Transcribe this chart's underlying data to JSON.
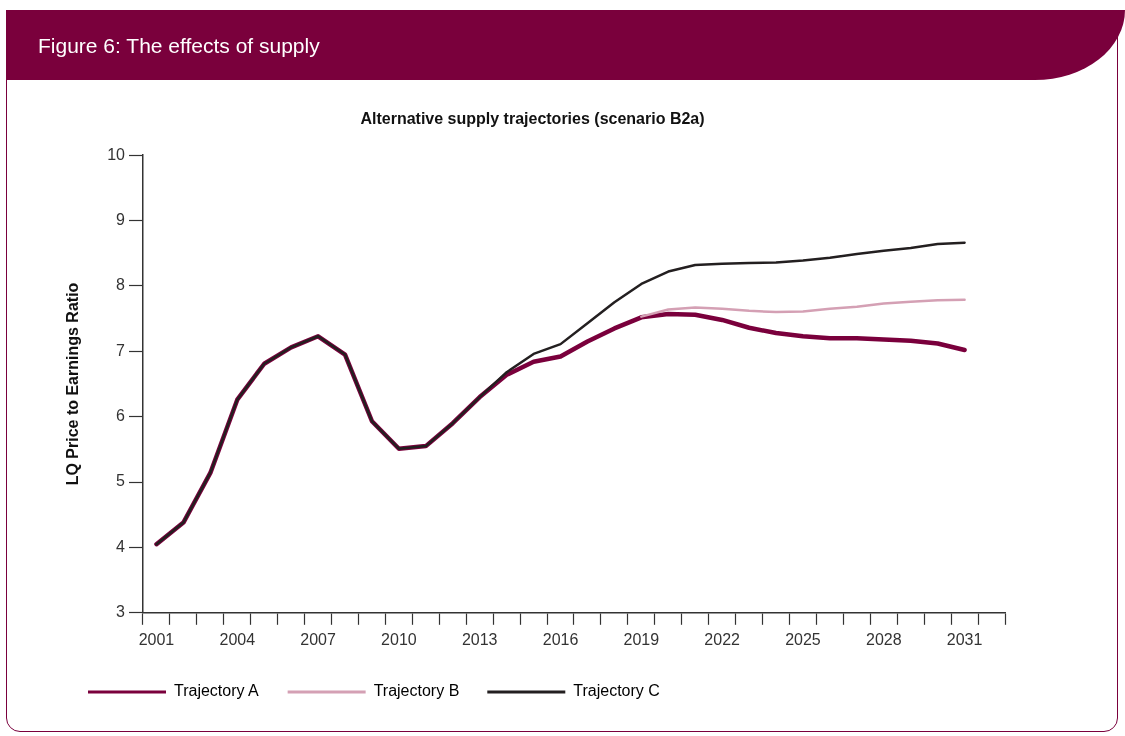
{
  "chart_data": {
    "type": "line",
    "title": "Figure 6:  The effects of supply",
    "subtitle": "Alternative supply trajectories (scenario B2a)",
    "ylabel": "LQ Price to Earnings Ratio",
    "categories": [
      "2001",
      null,
      null,
      "2004",
      null,
      null,
      "2007",
      null,
      null,
      "2010",
      null,
      null,
      "2013",
      null,
      null,
      "2016",
      null,
      null,
      "2019",
      null,
      null,
      "2022",
      null,
      null,
      "2025",
      null,
      null,
      "2028",
      null,
      null,
      "2031",
      null
    ],
    "series": [
      {
        "name": "Trajectory A",
        "color": "#7a003c",
        "values": [
          4.05,
          4.38,
          5.14,
          6.26,
          6.81,
          7.06,
          7.23,
          6.95,
          5.93,
          5.51,
          5.55,
          5.9,
          6.3,
          6.64,
          6.84,
          6.92,
          7.15,
          7.35,
          7.52,
          7.57,
          7.56,
          7.48,
          7.36,
          7.28,
          7.23,
          7.2,
          7.2,
          7.18,
          7.16,
          7.12,
          7.02,
          null
        ]
      },
      {
        "name": "Trajectory B",
        "color": "#d4a0b4",
        "values": [
          null,
          null,
          null,
          null,
          null,
          null,
          null,
          null,
          null,
          null,
          null,
          null,
          null,
          null,
          null,
          null,
          null,
          null,
          7.53,
          7.64,
          7.67,
          7.65,
          7.62,
          7.6,
          7.61,
          7.65,
          7.68,
          7.73,
          7.76,
          7.78,
          7.79,
          null
        ]
      },
      {
        "name": "Trajectory C",
        "color": "#231f20",
        "values": [
          4.05,
          4.38,
          5.14,
          6.26,
          6.81,
          7.06,
          7.23,
          6.95,
          5.93,
          5.51,
          5.55,
          5.9,
          6.3,
          6.68,
          6.96,
          7.11,
          7.43,
          7.75,
          8.03,
          8.22,
          8.32,
          8.34,
          8.35,
          8.36,
          8.39,
          8.43,
          8.49,
          8.54,
          8.58,
          8.64,
          8.66,
          null
        ]
      }
    ],
    "ylim": [
      3,
      10
    ],
    "yticks": [
      3,
      4,
      5,
      6,
      7,
      8,
      9,
      10
    ],
    "legend": "bottom",
    "marker": "none",
    "line_style": "solid"
  }
}
